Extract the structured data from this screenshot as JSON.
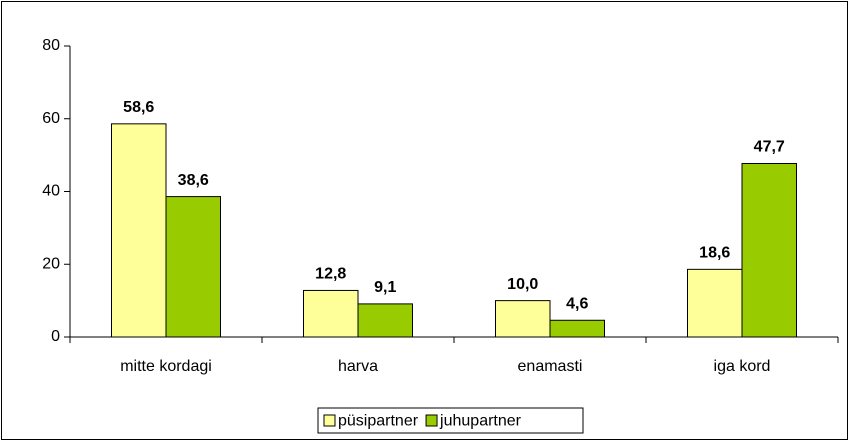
{
  "chart_data": {
    "type": "bar",
    "categories": [
      "mitte kordagi",
      "harva",
      "enamasti",
      "iga kord"
    ],
    "series": [
      {
        "name": "püsipartner",
        "color": "#ffff99",
        "values": [
          58.6,
          12.8,
          10.0,
          18.6
        ],
        "value_labels": [
          "58,6",
          "12,8",
          "10,0",
          "18,6"
        ]
      },
      {
        "name": "juhupartner",
        "color": "#99cc00",
        "values": [
          38.6,
          9.1,
          4.6,
          47.7
        ],
        "value_labels": [
          "38,6",
          "9,1",
          "4,6",
          "47,7"
        ]
      }
    ],
    "ylim": [
      0,
      80
    ],
    "yticks": [
      0,
      20,
      40,
      60,
      80
    ],
    "grid": false,
    "legend": "bottom"
  }
}
